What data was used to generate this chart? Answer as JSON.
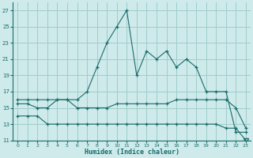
{
  "xlabel": "Humidex (Indice chaleur)",
  "x": [
    0,
    1,
    2,
    3,
    4,
    5,
    6,
    7,
    8,
    9,
    10,
    11,
    12,
    13,
    14,
    15,
    16,
    17,
    18,
    19,
    20,
    21,
    22,
    23
  ],
  "line1": [
    16,
    16,
    16,
    16,
    16,
    16,
    16,
    17,
    20,
    23,
    25,
    27,
    19,
    22,
    21,
    22,
    20,
    21,
    20,
    17,
    17,
    17,
    12,
    12
  ],
  "line2": [
    15.5,
    15.5,
    15,
    15,
    16,
    16,
    15,
    15,
    15,
    15,
    15.5,
    15.5,
    15.5,
    15.5,
    15.5,
    15.5,
    16,
    16,
    16,
    16,
    16,
    16,
    15,
    12.5
  ],
  "line3": [
    14,
    14,
    14,
    13,
    13,
    13,
    13,
    13,
    13,
    13,
    13,
    13,
    13,
    13,
    13,
    13,
    13,
    13,
    13,
    13,
    13,
    12.5,
    12.5,
    11
  ],
  "bg_color": "#ceeaea",
  "grid_color": "#a0cccc",
  "line_color": "#1a6b6b",
  "ylim": [
    11,
    28
  ],
  "yticks": [
    11,
    13,
    15,
    17,
    19,
    21,
    23,
    25,
    27
  ],
  "xlim": [
    -0.5,
    23.5
  ]
}
